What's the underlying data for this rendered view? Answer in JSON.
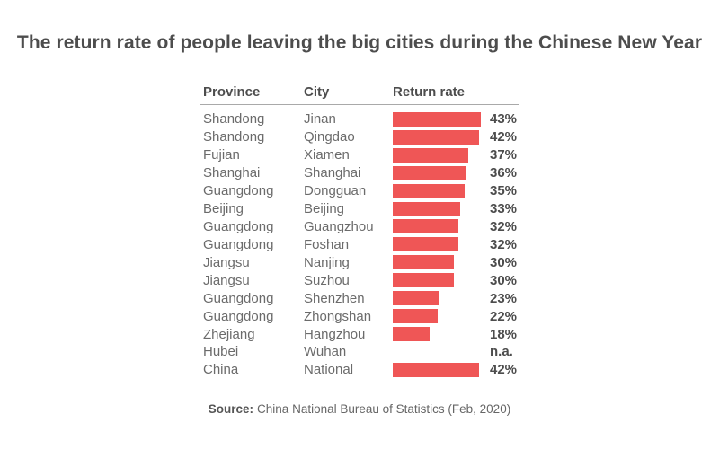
{
  "title": "The return rate of people leaving the big cities during the Chinese New Year",
  "table": {
    "headers": {
      "province": "Province",
      "city": "City",
      "return_rate": "Return rate"
    }
  },
  "chart_data": {
    "type": "bar",
    "orientation": "horizontal",
    "title": "The return rate of people leaving the big cities during the Chinese New Year",
    "columns": [
      "Province",
      "City",
      "Return rate"
    ],
    "unit": "%",
    "xlim": [
      0,
      45
    ],
    "grid": false,
    "legend": false,
    "bar_color": "#ef5656",
    "rows": [
      {
        "province": "Shandong",
        "city": "Jinan",
        "value": 43,
        "label": "43%"
      },
      {
        "province": "Shandong",
        "city": "Qingdao",
        "value": 42,
        "label": "42%"
      },
      {
        "province": "Fujian",
        "city": "Xiamen",
        "value": 37,
        "label": "37%"
      },
      {
        "province": "Shanghai",
        "city": "Shanghai",
        "value": 36,
        "label": "36%"
      },
      {
        "province": "Guangdong",
        "city": "Dongguan",
        "value": 35,
        "label": "35%"
      },
      {
        "province": "Beijing",
        "city": "Beijing",
        "value": 33,
        "label": "33%"
      },
      {
        "province": "Guangdong",
        "city": "Guangzhou",
        "value": 32,
        "label": "32%"
      },
      {
        "province": "Guangdong",
        "city": "Foshan",
        "value": 32,
        "label": "32%"
      },
      {
        "province": "Jiangsu",
        "city": "Nanjing",
        "value": 30,
        "label": "30%"
      },
      {
        "province": "Jiangsu",
        "city": "Suzhou",
        "value": 30,
        "label": "30%"
      },
      {
        "province": "Guangdong",
        "city": "Shenzhen",
        "value": 23,
        "label": "23%"
      },
      {
        "province": "Guangdong",
        "city": "Zhongshan",
        "value": 22,
        "label": "22%"
      },
      {
        "province": "Zhejiang",
        "city": "Hangzhou",
        "value": 18,
        "label": "18%"
      },
      {
        "province": "Hubei",
        "city": "Wuhan",
        "value": null,
        "label": "n.a."
      },
      {
        "province": "China",
        "city": "National",
        "value": 42,
        "label": "42%"
      }
    ]
  },
  "source": {
    "label": "Source:",
    "text": "China National Bureau of Statistics (Feb, 2020)"
  },
  "colors": {
    "background": "#ffffff",
    "bar": "#ef5656",
    "title_text": "#4d4d4d",
    "header_text": "#4d4d4d",
    "body_text": "#6b6b6b",
    "value_text": "#4d4d4d",
    "divider": "#a9a9a9",
    "source_text": "#666666"
  }
}
